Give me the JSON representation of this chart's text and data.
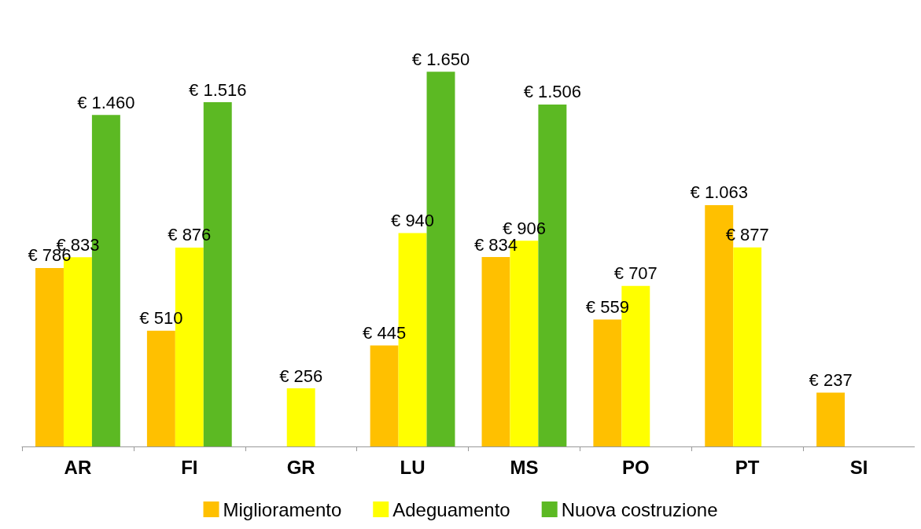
{
  "chart_data": {
    "type": "bar",
    "categories": [
      "AR",
      "FI",
      "GR",
      "LU",
      "MS",
      "PO",
      "PT",
      "SI"
    ],
    "series": [
      {
        "name": "Miglioramento",
        "color": "#ffc000",
        "values": [
          786,
          510,
          null,
          445,
          834,
          559,
          1063,
          237
        ],
        "value_labels": [
          "€ 786",
          "€ 510",
          null,
          "€ 445",
          "€ 834",
          "€ 559",
          "€ 1.063",
          "€ 237"
        ]
      },
      {
        "name": "Adeguamento",
        "color": "#ffff00",
        "values": [
          833,
          876,
          256,
          940,
          906,
          707,
          877,
          null
        ],
        "value_labels": [
          "€ 833",
          "€ 876",
          "€ 256",
          "€ 940",
          "€ 906",
          "€ 707",
          "€ 877",
          null
        ]
      },
      {
        "name": "Nuova costruzione",
        "color": "#5cb923",
        "values": [
          1460,
          1516,
          null,
          1650,
          1506,
          null,
          null,
          null
        ],
        "value_labels": [
          "€ 1.460",
          "€ 1.516",
          null,
          "€ 1.650",
          "€ 1.506",
          null,
          null,
          null
        ]
      }
    ],
    "legend": "bottom",
    "grid": false
  }
}
